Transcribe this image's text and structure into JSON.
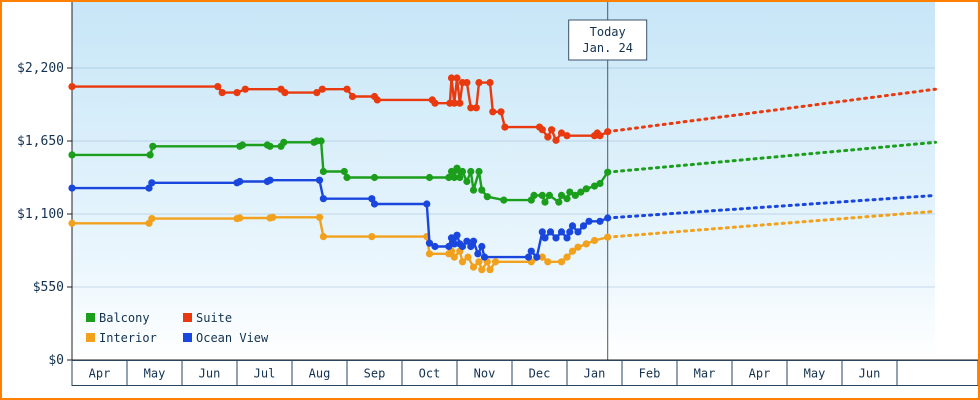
{
  "frame": {
    "border_color": "#ff8000",
    "plot_gradient_top": "#c7e6f7",
    "plot_gradient_mid": "#eaf6fd",
    "plot_gradient_bottom": "#ffffff"
  },
  "chart_data": {
    "type": "line",
    "title": "",
    "currency": "USD",
    "legend_position": "bottom-left",
    "grid": true,
    "x_axis": {
      "x_unit": "month index, Apr = 0, fraction = day within month",
      "range": [
        0,
        15.7
      ],
      "months": [
        "Apr",
        "May",
        "Jun",
        "Jul",
        "Aug",
        "Sep",
        "Oct",
        "Nov",
        "Dec",
        "Jan",
        "Feb",
        "Mar",
        "Apr",
        "May",
        "Jun"
      ]
    },
    "y_axis": {
      "ticks": [
        0,
        550,
        1100,
        1650,
        2200
      ],
      "tick_labels": [
        "$0",
        "$550",
        "$1,100",
        "$1,650",
        "$2,200"
      ],
      "range": [
        0,
        2700
      ]
    },
    "today": {
      "line1": "Today",
      "line2": "Jan. 24",
      "month_index": 9.74
    },
    "series": [
      {
        "name": "Balcony",
        "color": "#1b9e1b",
        "points": [
          [
            0,
            1545
          ],
          [
            1.42,
            1545
          ],
          [
            1.47,
            1610
          ],
          [
            3.05,
            1610
          ],
          [
            3.1,
            1620
          ],
          [
            3.55,
            1620
          ],
          [
            3.6,
            1610
          ],
          [
            3.8,
            1610
          ],
          [
            3.85,
            1640
          ],
          [
            4.4,
            1640
          ],
          [
            4.45,
            1650
          ],
          [
            4.53,
            1650
          ],
          [
            4.57,
            1420
          ],
          [
            4.95,
            1420
          ],
          [
            5.0,
            1375
          ],
          [
            5.5,
            1375
          ],
          [
            6.5,
            1375
          ],
          [
            6.85,
            1375
          ],
          [
            6.9,
            1420
          ],
          [
            6.95,
            1375
          ],
          [
            7.0,
            1445
          ],
          [
            7.05,
            1375
          ],
          [
            7.1,
            1420
          ],
          [
            7.18,
            1345
          ],
          [
            7.25,
            1420
          ],
          [
            7.3,
            1280
          ],
          [
            7.4,
            1420
          ],
          [
            7.45,
            1280
          ],
          [
            7.55,
            1230
          ],
          [
            7.85,
            1205
          ],
          [
            8.35,
            1205
          ],
          [
            8.4,
            1240
          ],
          [
            8.55,
            1240
          ],
          [
            8.6,
            1190
          ],
          [
            8.68,
            1240
          ],
          [
            8.85,
            1190
          ],
          [
            8.9,
            1240
          ],
          [
            9.0,
            1215
          ],
          [
            9.05,
            1265
          ],
          [
            9.15,
            1240
          ],
          [
            9.25,
            1265
          ],
          [
            9.35,
            1290
          ],
          [
            9.5,
            1310
          ],
          [
            9.6,
            1330
          ],
          [
            9.74,
            1415
          ]
        ],
        "projection": [
          [
            9.74,
            1415
          ],
          [
            15.7,
            1640
          ]
        ]
      },
      {
        "name": "Suite",
        "color": "#e8390f",
        "points": [
          [
            0,
            2060
          ],
          [
            2.65,
            2060
          ],
          [
            2.73,
            2015
          ],
          [
            3.0,
            2015
          ],
          [
            3.15,
            2040
          ],
          [
            3.8,
            2040
          ],
          [
            3.87,
            2015
          ],
          [
            4.45,
            2015
          ],
          [
            4.55,
            2040
          ],
          [
            5.0,
            2040
          ],
          [
            5.1,
            1985
          ],
          [
            5.5,
            1985
          ],
          [
            5.55,
            1960
          ],
          [
            6.55,
            1960
          ],
          [
            6.6,
            1935
          ],
          [
            6.87,
            1935
          ],
          [
            6.9,
            2125
          ],
          [
            6.95,
            1935
          ],
          [
            7.0,
            2125
          ],
          [
            7.05,
            1935
          ],
          [
            7.1,
            2090
          ],
          [
            7.18,
            2090
          ],
          [
            7.25,
            1900
          ],
          [
            7.35,
            1900
          ],
          [
            7.4,
            2090
          ],
          [
            7.6,
            2090
          ],
          [
            7.65,
            1870
          ],
          [
            7.8,
            1870
          ],
          [
            7.87,
            1755
          ],
          [
            8.5,
            1755
          ],
          [
            8.55,
            1735
          ],
          [
            8.65,
            1680
          ],
          [
            8.72,
            1735
          ],
          [
            8.8,
            1655
          ],
          [
            8.9,
            1710
          ],
          [
            9.0,
            1690
          ],
          [
            9.5,
            1690
          ],
          [
            9.55,
            1710
          ],
          [
            9.6,
            1690
          ],
          [
            9.74,
            1720
          ]
        ],
        "projection": [
          [
            9.74,
            1720
          ],
          [
            15.7,
            2040
          ]
        ]
      },
      {
        "name": "Interior",
        "color": "#f2a11c",
        "points": [
          [
            0,
            1030
          ],
          [
            1.4,
            1030
          ],
          [
            1.45,
            1065
          ],
          [
            3.0,
            1065
          ],
          [
            3.05,
            1070
          ],
          [
            3.6,
            1070
          ],
          [
            3.65,
            1075
          ],
          [
            4.5,
            1075
          ],
          [
            4.57,
            930
          ],
          [
            5.45,
            930
          ],
          [
            6.45,
            930
          ],
          [
            6.5,
            800
          ],
          [
            6.85,
            800
          ],
          [
            6.9,
            820
          ],
          [
            6.95,
            775
          ],
          [
            7.05,
            820
          ],
          [
            7.1,
            740
          ],
          [
            7.2,
            775
          ],
          [
            7.3,
            700
          ],
          [
            7.4,
            740
          ],
          [
            7.45,
            680
          ],
          [
            7.55,
            740
          ],
          [
            7.6,
            680
          ],
          [
            7.7,
            740
          ],
          [
            8.35,
            740
          ],
          [
            8.55,
            775
          ],
          [
            8.65,
            740
          ],
          [
            8.9,
            740
          ],
          [
            9.0,
            775
          ],
          [
            9.1,
            820
          ],
          [
            9.2,
            850
          ],
          [
            9.35,
            875
          ],
          [
            9.5,
            900
          ],
          [
            9.74,
            925
          ]
        ],
        "projection": [
          [
            9.74,
            925
          ],
          [
            15.7,
            1120
          ]
        ]
      },
      {
        "name": "Ocean View",
        "color": "#1946dd",
        "points": [
          [
            0,
            1295
          ],
          [
            1.4,
            1295
          ],
          [
            1.45,
            1335
          ],
          [
            3.0,
            1335
          ],
          [
            3.05,
            1345
          ],
          [
            3.55,
            1345
          ],
          [
            3.6,
            1355
          ],
          [
            4.5,
            1355
          ],
          [
            4.57,
            1215
          ],
          [
            5.45,
            1215
          ],
          [
            5.5,
            1175
          ],
          [
            6.45,
            1175
          ],
          [
            6.5,
            880
          ],
          [
            6.6,
            855
          ],
          [
            6.85,
            855
          ],
          [
            6.9,
            920
          ],
          [
            6.95,
            875
          ],
          [
            7.0,
            940
          ],
          [
            7.05,
            875
          ],
          [
            7.1,
            855
          ],
          [
            7.18,
            895
          ],
          [
            7.25,
            855
          ],
          [
            7.3,
            895
          ],
          [
            7.38,
            800
          ],
          [
            7.45,
            855
          ],
          [
            7.5,
            775
          ],
          [
            8.3,
            775
          ],
          [
            8.35,
            820
          ],
          [
            8.45,
            775
          ],
          [
            8.55,
            965
          ],
          [
            8.6,
            920
          ],
          [
            8.7,
            965
          ],
          [
            8.8,
            920
          ],
          [
            8.9,
            965
          ],
          [
            9.0,
            920
          ],
          [
            9.05,
            965
          ],
          [
            9.1,
            1010
          ],
          [
            9.2,
            965
          ],
          [
            9.3,
            1010
          ],
          [
            9.4,
            1045
          ],
          [
            9.6,
            1045
          ],
          [
            9.74,
            1070
          ]
        ],
        "projection": [
          [
            9.74,
            1070
          ],
          [
            15.7,
            1240
          ]
        ]
      }
    ],
    "legend": {
      "order": [
        "Balcony",
        "Suite",
        "Interior",
        "Ocean View"
      ]
    }
  }
}
